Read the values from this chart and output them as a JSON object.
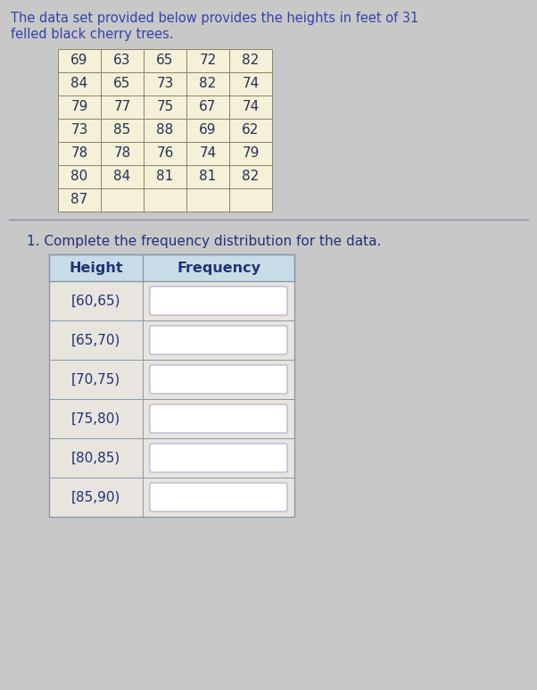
{
  "title_line1": "The data set provided below provides the heights in feet of 31",
  "title_line2": "felled black cherry trees.",
  "data_table": [
    [
      69,
      63,
      65,
      72,
      82
    ],
    [
      84,
      65,
      73,
      82,
      74
    ],
    [
      79,
      77,
      75,
      67,
      74
    ],
    [
      73,
      85,
      88,
      69,
      62
    ],
    [
      78,
      78,
      76,
      74,
      79
    ],
    [
      80,
      84,
      81,
      81,
      82
    ],
    [
      87,
      null,
      null,
      null,
      null
    ]
  ],
  "question": "1. Complete the frequency distribution for the data.",
  "freq_headers": [
    "Height",
    "Frequency"
  ],
  "freq_rows": [
    "[60,65)",
    "[65,70)",
    "[70,75)",
    "[75,80)",
    "[80,85)",
    "[85,90)"
  ],
  "page_bg": "#c8c8c8",
  "card_bg": "#e8e4de",
  "data_table_cell_bg": "#f5f0d8",
  "data_table_border": "#888866",
  "freq_header_bg": "#c8dce8",
  "freq_header_border": "#8899aa",
  "freq_row_bg": "#e8e4de",
  "freq_input_bg": "#ffffff",
  "freq_input_border": "#aaaacc",
  "title_color": "#3344aa",
  "body_text_color": "#223377",
  "table_num_color": "#223355",
  "sep_line_color": "#8888aa",
  "font_size_title": 10.5,
  "font_size_table": 11,
  "font_size_question": 11,
  "font_size_freq": 11
}
